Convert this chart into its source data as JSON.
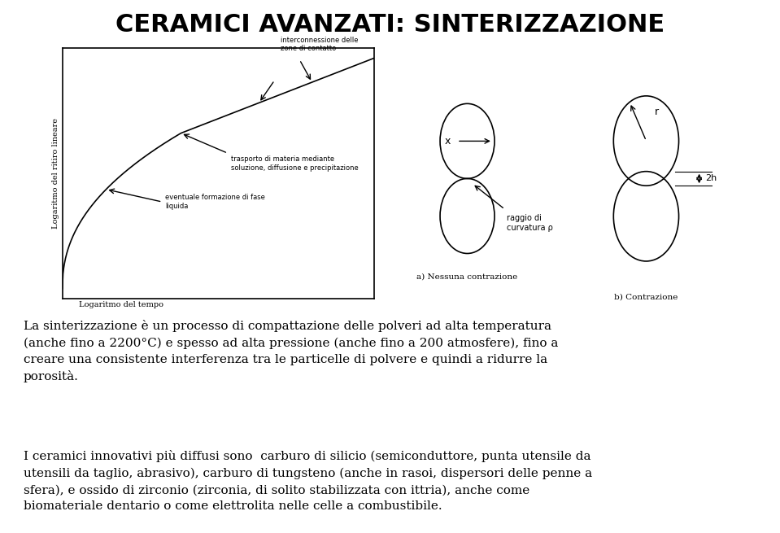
{
  "title": "CERAMICI AVANZATI: SINTERIZZAZIONE",
  "title_fontsize": 22,
  "title_fontweight": "bold",
  "background_color": "#ffffff",
  "text_color": "#000000",
  "paragraph1": "La sinterizzazione è un processo di compattazione delle polveri ad alta temperatura\n(anche fino a 2200°C) e spesso ad alta pressione (anche fino a 200 atmosfere), fino a\ncreare una consistente interferenza tra le particelle di polvere e quindi a ridurre la\nporosità.",
  "paragraph2": "I ceramici innovativi più diffusi sono  carburo di silicio (semiconduttore, punta utensile da\nutensili da taglio, abrasivo), carburo di tungsteno (anche in rasoi, dispersori delle penne a\nsfera), e ossido di zirconio (zirconia, di solito stabilizzata con ittria), anche come\nbiomateriale dentario o come elettrolita nelle celle a combustibile.",
  "ylabel_graph1": "Logaritmo del ritiro lineare",
  "xlabel_graph1": "Logaritmo del tempo",
  "ann1_text": "interconnessione delle\nzone di contatto",
  "ann2_text": "trasporto di materia mediante\nsoluzione, diffusione e precipitazione",
  "ann3_text": "eventuale formazione di fase\nliquida",
  "label_a": "a) Nessuna contrazione",
  "label_b": "b) Contrazione",
  "diagram_a_label_x": "x",
  "diagram_a_label_rho": "raggio di\ncurvatura ρ",
  "diagram_b_label_r": "r",
  "diagram_b_label_2h": "2h"
}
